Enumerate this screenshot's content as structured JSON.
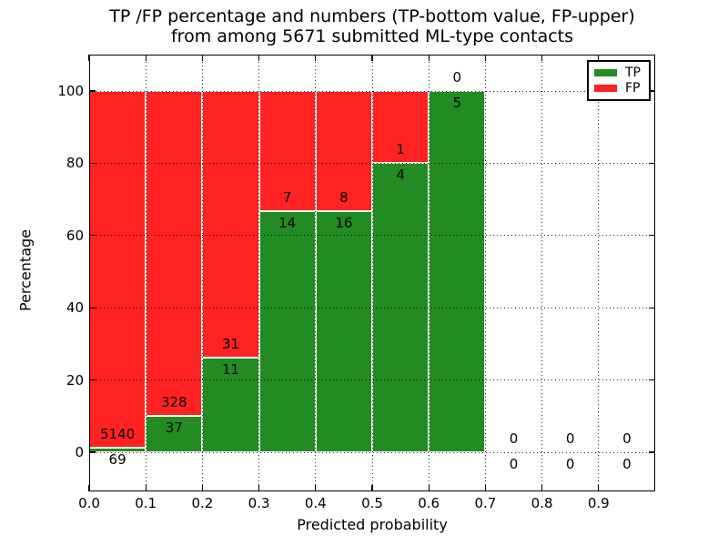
{
  "figure": {
    "title_line1": "TP /FP percentage and numbers (TP-bottom value, FP-upper)",
    "title_line2": "from among 5671 submitted ML-type contacts",
    "background_color": "#ffffff",
    "text_color": "#000000"
  },
  "axes": {
    "x_label": "Predicted probability",
    "y_label": "Percentage",
    "x_ticks": [
      "0.0",
      "0.1",
      "0.2",
      "0.3",
      "0.4",
      "0.5",
      "0.6",
      "0.7",
      "0.8",
      "0.9"
    ],
    "y_ticks": [
      "0",
      "20",
      "40",
      "60",
      "80",
      "100"
    ],
    "grid_style": "dotted"
  },
  "legend": {
    "position": "upper right",
    "items": [
      {
        "label": "TP",
        "color": "#228b22"
      },
      {
        "label": "FP",
        "color": "#ff2222"
      }
    ]
  },
  "chart_data": {
    "type": "bar",
    "stacked": true,
    "normalized": "each non-empty bin stacked to 100%",
    "title": "TP /FP percentage and numbers (TP-bottom value, FP-upper) from among 5671 submitted ML-type contacts",
    "xlabel": "Predicted probability",
    "ylabel": "Percentage",
    "xlim": [
      0.0,
      1.0
    ],
    "ylim": [
      -11,
      110
    ],
    "grid": "dotted",
    "legend_position": "upper right",
    "total_contacts": 5671,
    "bin_width": 0.1,
    "annotation_rule": "FP count above TP-segment top, TP count below it",
    "bins": [
      {
        "range": [
          0.0,
          0.1
        ],
        "tp": 69,
        "fp": 5140
      },
      {
        "range": [
          0.1,
          0.2
        ],
        "tp": 37,
        "fp": 328
      },
      {
        "range": [
          0.2,
          0.3
        ],
        "tp": 11,
        "fp": 31
      },
      {
        "range": [
          0.3,
          0.4
        ],
        "tp": 14,
        "fp": 7
      },
      {
        "range": [
          0.4,
          0.5
        ],
        "tp": 16,
        "fp": 8
      },
      {
        "range": [
          0.5,
          0.6
        ],
        "tp": 4,
        "fp": 1
      },
      {
        "range": [
          0.6,
          0.7
        ],
        "tp": 5,
        "fp": 0
      },
      {
        "range": [
          0.7,
          0.8
        ],
        "tp": 0,
        "fp": 0
      },
      {
        "range": [
          0.8,
          0.9
        ],
        "tp": 0,
        "fp": 0
      },
      {
        "range": [
          0.9,
          1.0
        ],
        "tp": 0,
        "fp": 0
      }
    ],
    "series": [
      {
        "name": "TP",
        "color": "#228b22",
        "values": [
          69,
          37,
          11,
          14,
          16,
          4,
          5,
          0,
          0,
          0
        ]
      },
      {
        "name": "FP",
        "color": "#ff2222",
        "values": [
          5140,
          328,
          31,
          7,
          8,
          1,
          0,
          0,
          0,
          0
        ]
      }
    ]
  }
}
